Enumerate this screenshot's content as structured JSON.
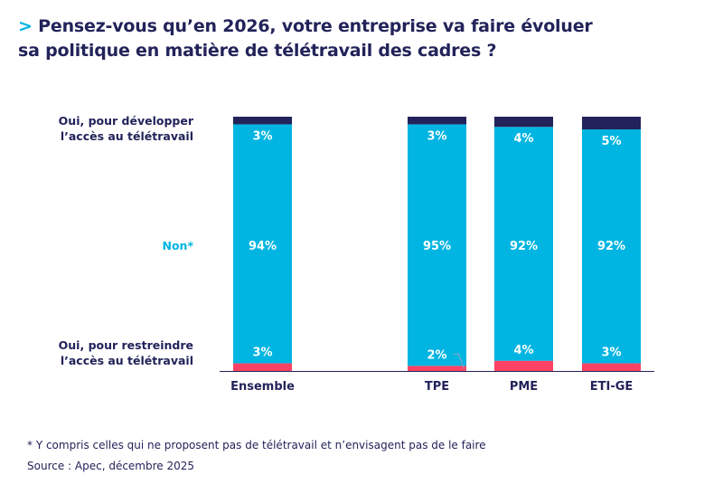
{
  "title": {
    "marker": ">",
    "line1": "Pensez-vous qu’en 2026, votre entreprise va faire évoluer",
    "line2": "sa politique en matière de télétravail des cadres ?"
  },
  "chart_data": {
    "type": "bar",
    "stacked": true,
    "categories": [
      "Ensemble",
      "TPE",
      "PME",
      "ETI-GE"
    ],
    "series": [
      {
        "name": "Oui, pour restreindre l’accès au télétravail",
        "values": [
          3,
          2,
          4,
          3
        ],
        "color": "#ff4264"
      },
      {
        "name": "Non*",
        "values": [
          94,
          95,
          92,
          92
        ],
        "color": "#00b5e2"
      },
      {
        "name": "Oui, pour développer l’accès au télétravail",
        "values": [
          3,
          3,
          4,
          5
        ],
        "color": "#22235a"
      }
    ],
    "ylim": [
      0,
      100
    ],
    "legend_labels": {
      "develop": [
        "Oui, pour développer",
        "l’accès au télétravail"
      ],
      "non": "Non*",
      "restrict": [
        "Oui, pour restreindre",
        "l’accès au télétravail"
      ]
    },
    "value_suffix": "%"
  },
  "footnote": "* Y compris celles qui ne proposent pas de télétravail  et n’envisagent pas de le faire",
  "source": "Source : Apec,  décembre 2025"
}
